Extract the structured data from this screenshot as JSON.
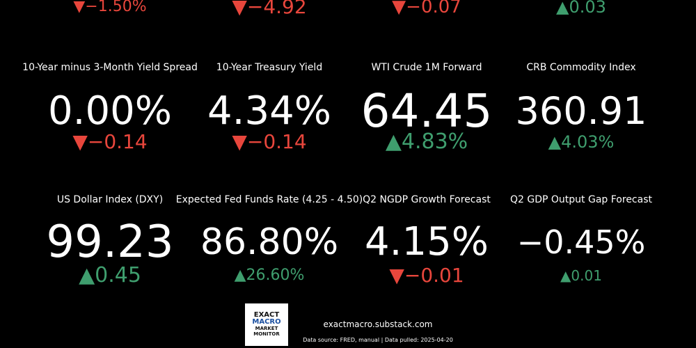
{
  "top_row": [
    {
      "change": "▼−1.50%",
      "color": "#e8463c"
    },
    {
      "change": "▼−4.92",
      "color": "#e8463c"
    },
    {
      "change": "▼−0.07",
      "color": "#e8463c"
    },
    {
      "change": "▲0.03",
      "color": "#3f9e6e"
    }
  ],
  "tiles": [
    {
      "title": "10-Year minus 3-Month Yield Spread",
      "value": "0.00%",
      "change": "▼−0.14",
      "color": "#e8463c"
    },
    {
      "title": "10-Year Treasury Yield",
      "value": "4.34%",
      "change": "▼−0.14",
      "color": "#e8463c"
    },
    {
      "title": "WTI Crude 1M Forward",
      "value": "64.45",
      "change": "▲4.83%",
      "color": "#3f9e6e"
    },
    {
      "title": "CRB Commodity Index",
      "value": "360.91",
      "change": "▲4.03%",
      "color": "#3f9e6e"
    },
    {
      "title": "US Dollar Index (DXY)",
      "value": "99.23",
      "change": "▲0.45",
      "color": "#3f9e6e"
    },
    {
      "title": "Expected Fed Funds Rate (4.25 - 4.50)",
      "value": "86.80%",
      "change": "▲26.60%",
      "color": "#3f9e6e"
    },
    {
      "title": "Q2 NGDP Growth Forecast",
      "value": "4.15%",
      "change": "▼−0.01",
      "color": "#e8463c"
    },
    {
      "title": "Q2 GDP Output Gap Forecast",
      "value": "−0.45%",
      "change": "▲0.01",
      "color": "#3f9e6e"
    }
  ],
  "logo": {
    "line1": "EXACT",
    "line2": "MACRO",
    "line3": "MARKET",
    "line4": "MONITOR"
  },
  "footer": {
    "site": "exactmacro.substack.com",
    "source": "Data source: FRED, manual | Data pulled: 2025-04-20"
  }
}
